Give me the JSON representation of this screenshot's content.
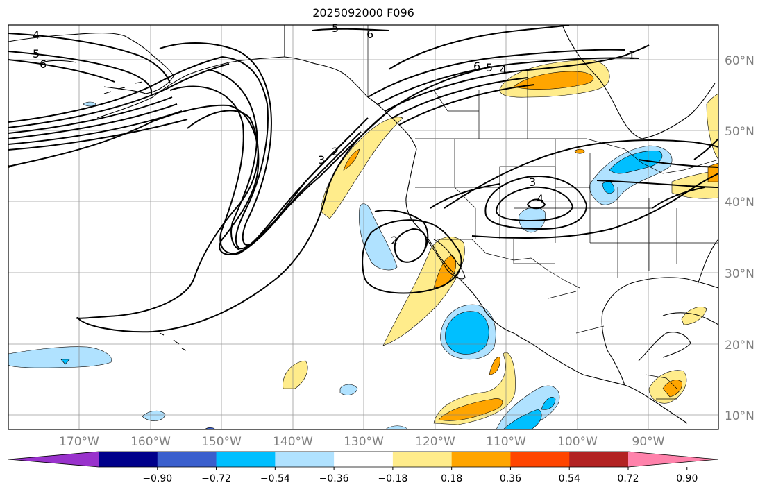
{
  "title": "2025092000 F096",
  "lon_labels": [
    "170°W",
    "160°W",
    "150°W",
    "140°W",
    "130°W",
    "120°W",
    "110°W",
    "100°W",
    "90°W"
  ],
  "lat_labels": [
    "60°N",
    "50°N",
    "40°N",
    "30°N",
    "20°N",
    "10°N"
  ],
  "colorbar": {
    "ticks": [
      "−0.90",
      "−0.72",
      "−0.54",
      "−0.36",
      "−0.18",
      "0.18",
      "0.36",
      "0.54",
      "0.72",
      "0.90"
    ],
    "colors": [
      "#9932cc",
      "#00008b",
      "#3a5fcd",
      "#00bfff",
      "#b0e2ff",
      "#ffffff",
      "#ffec8b",
      "#ffa500",
      "#ff4500",
      "#b22222",
      "#ff82ab"
    ]
  },
  "contour_labels": [
    "4",
    "5",
    "6",
    "6",
    "5",
    "6",
    "5",
    "4",
    "1",
    "3",
    "2",
    "3",
    "4",
    "2"
  ]
}
